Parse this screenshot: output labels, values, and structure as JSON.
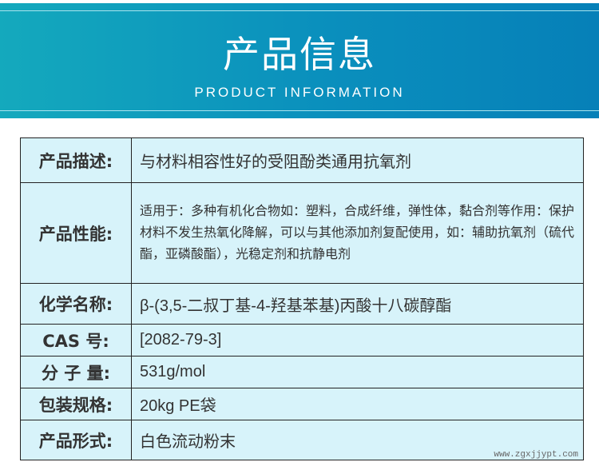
{
  "header": {
    "title": "产品信息",
    "subtitle": "PRODUCT INFORMATION"
  },
  "rows": [
    {
      "label": "产品描述:",
      "value": "与材料相容性好的受阻酚类通用抗氧剂"
    },
    {
      "label": "产品性能:",
      "value": "适用于：多种有机化合物如：塑料，合成纤维，弹性体，黏合剂等作用：保护材料不发生热氧化降解，可以与其他添加剂复配使用，如：辅助抗氧剂（硫代酯，亚磷酸酯），光稳定剂和抗静电剂"
    },
    {
      "label": "化学名称:",
      "value": "β-(3,5-二叔丁基-4-羟基苯基)丙酸十八碳醇酯"
    },
    {
      "label": "CAS 号:",
      "value": "[2082-79-3]"
    },
    {
      "label": "分 子 量:",
      "value": "531g/mol"
    },
    {
      "label": "包装规格:",
      "value": "20kg PE袋"
    },
    {
      "label": "产品形式:",
      "value": "白色流动粉末"
    }
  ],
  "watermark": "www.zgxjjypt.com"
}
